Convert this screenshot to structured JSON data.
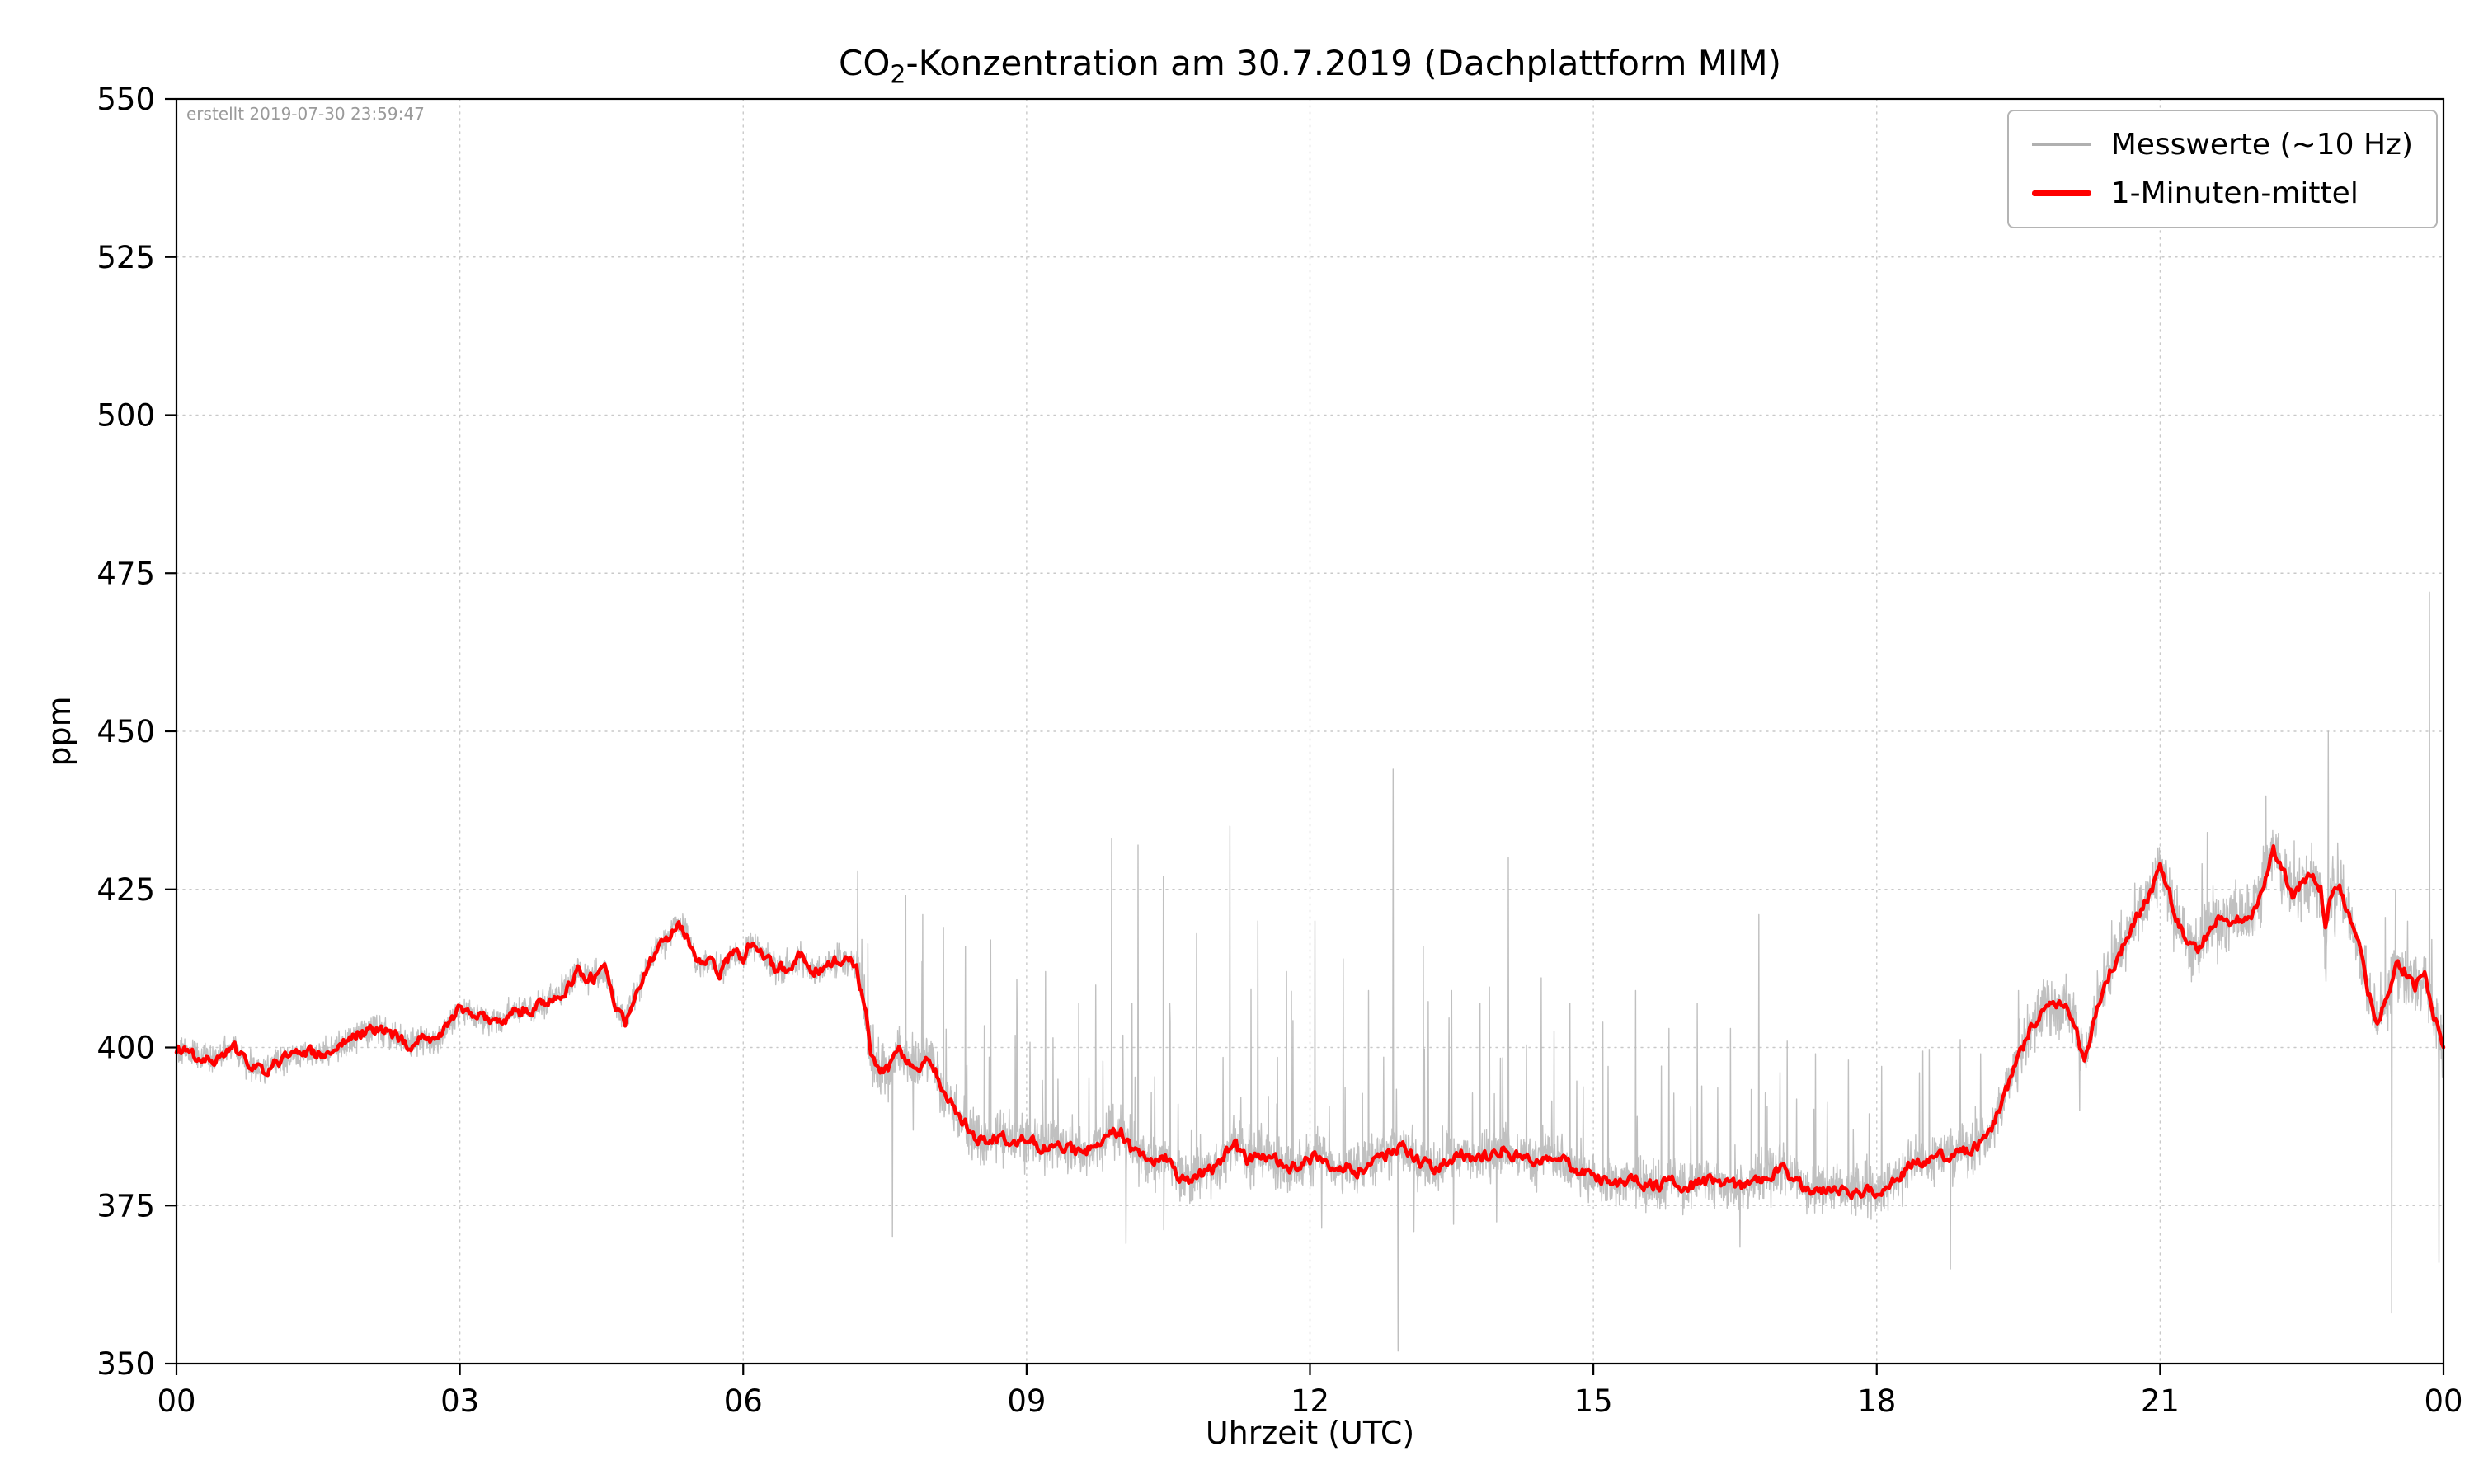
{
  "figure": {
    "title": {
      "pre": "CO",
      "sub": "2",
      "post": "-Konzentration am 30.7.2019 (Dachplattform MIM)"
    },
    "created_note": "erstellt 2019-07-30 23:59:47",
    "xlabel": "Uhrzeit (UTC)",
    "ylabel": "ppm",
    "background_color": "#ffffff"
  },
  "legend": {
    "position": "upper right",
    "items": [
      {
        "label": "Messwerte (~10 Hz)",
        "color": "#b0b0b0",
        "line_weight": "thin"
      },
      {
        "label": "1-Minuten-mittel",
        "color": "#ff0000",
        "line_weight": "thick"
      }
    ]
  },
  "chart_data": {
    "type": "line",
    "title": "CO2-Konzentration am 30.7.2019 (Dachplattform MIM)",
    "xlabel": "Uhrzeit (UTC)",
    "ylabel": "ppm",
    "xlim": [
      0,
      24
    ],
    "ylim": [
      350,
      550
    ],
    "grid": true,
    "grid_style": "dotted",
    "legend_position": "upper right",
    "xticks": {
      "values": [
        0,
        3,
        6,
        9,
        12,
        15,
        18,
        21,
        24
      ],
      "labels": [
        "00",
        "03",
        "06",
        "09",
        "12",
        "15",
        "18",
        "21",
        "00"
      ]
    },
    "yticks": {
      "values": [
        350,
        375,
        400,
        425,
        450,
        475,
        500,
        525,
        550
      ],
      "labels": [
        "350",
        "375",
        "400",
        "425",
        "450",
        "475",
        "500",
        "525",
        "550"
      ]
    },
    "series": [
      {
        "name": "Messwerte (~10 Hz)",
        "color": "#b9b9b9",
        "derived": "mean_plus_noise",
        "noise_model": {
          "seed": 42,
          "sample_step_hours": 0.004,
          "segments": [
            [
              0,
              7.2,
              2.2,
              0,
              0
            ],
            [
              7.2,
              8.5,
              4.5,
              0.03,
              18
            ],
            [
              8.5,
              14,
              3.8,
              0.05,
              26
            ],
            [
              14,
              19,
              3.8,
              0.04,
              20
            ],
            [
              19,
              21,
              4.5,
              0.012,
              10
            ],
            [
              21,
              24,
              5,
              0.02,
              12
            ]
          ],
          "spikes": [
            [
              7.58,
              370
            ],
            [
              7.72,
              424
            ],
            [
              7.9,
              421
            ],
            [
              8.12,
              419
            ],
            [
              8.35,
              416
            ],
            [
              8.62,
              417
            ],
            [
              8.9,
              404
            ],
            [
              9.2,
              412
            ],
            [
              9.55,
              407
            ],
            [
              9.9,
              433
            ],
            [
              10.05,
              369
            ],
            [
              10.18,
              432
            ],
            [
              10.45,
              427
            ],
            [
              10.52,
              404
            ],
            [
              10.8,
              418
            ],
            [
              11.15,
              435
            ],
            [
              11.45,
              420
            ],
            [
              11.75,
              412
            ],
            [
              12.05,
              420
            ],
            [
              12.35,
              414
            ],
            [
              12.62,
              409
            ],
            [
              12.88,
              444
            ],
            [
              12.93,
              352
            ],
            [
              13.2,
              416
            ],
            [
              13.5,
              409
            ],
            [
              13.8,
              407
            ],
            [
              14.1,
              430
            ],
            [
              14.45,
              411
            ],
            [
              14.75,
              407
            ],
            [
              15.1,
              404
            ],
            [
              15.45,
              409
            ],
            [
              15.8,
              403
            ],
            [
              16.1,
              407
            ],
            [
              16.45,
              403
            ],
            [
              16.75,
              421
            ],
            [
              17.05,
              401
            ],
            [
              17.35,
              399
            ],
            [
              17.7,
              398
            ],
            [
              18.05,
              397
            ],
            [
              18.45,
              396
            ],
            [
              18.78,
              365
            ],
            [
              19.1,
              399
            ],
            [
              19.5,
              409
            ],
            [
              20.15,
              390
            ],
            [
              21.5,
              434
            ],
            [
              22.78,
              450
            ],
            [
              23.45,
              358
            ],
            [
              23.85,
              472
            ],
            [
              23.95,
              366
            ]
          ]
        }
      },
      {
        "name": "1-Minuten-mittel",
        "color": "#ff0000",
        "points": [
          [
            0,
            400
          ],
          [
            0.2,
            399
          ],
          [
            0.4,
            398
          ],
          [
            0.6,
            400
          ],
          [
            0.75,
            397.5
          ],
          [
            0.9,
            396
          ],
          [
            1.1,
            398
          ],
          [
            1.3,
            399
          ],
          [
            1.5,
            399
          ],
          [
            1.7,
            400
          ],
          [
            1.9,
            402
          ],
          [
            2.1,
            403
          ],
          [
            2.3,
            402
          ],
          [
            2.45,
            400.5
          ],
          [
            2.6,
            401.5
          ],
          [
            2.75,
            400.5
          ],
          [
            2.9,
            404
          ],
          [
            3.0,
            406
          ],
          [
            3.1,
            405.5
          ],
          [
            3.3,
            404
          ],
          [
            3.5,
            405
          ],
          [
            3.7,
            406
          ],
          [
            3.9,
            407
          ],
          [
            4.1,
            409
          ],
          [
            4.25,
            412
          ],
          [
            4.4,
            411
          ],
          [
            4.55,
            412
          ],
          [
            4.65,
            407
          ],
          [
            4.75,
            404
          ],
          [
            4.85,
            408
          ],
          [
            5.0,
            413
          ],
          [
            5.1,
            416
          ],
          [
            5.2,
            417
          ],
          [
            5.3,
            420
          ],
          [
            5.4,
            418
          ],
          [
            5.5,
            413
          ],
          [
            5.6,
            414
          ],
          [
            5.75,
            412
          ],
          [
            5.9,
            415
          ],
          [
            6.0,
            414
          ],
          [
            6.1,
            417
          ],
          [
            6.2,
            415
          ],
          [
            6.35,
            412
          ],
          [
            6.5,
            413
          ],
          [
            6.6,
            414.5
          ],
          [
            6.75,
            412
          ],
          [
            6.9,
            413
          ],
          [
            7.0,
            414
          ],
          [
            7.1,
            413.5
          ],
          [
            7.2,
            413
          ],
          [
            7.3,
            405
          ],
          [
            7.35,
            398
          ],
          [
            7.45,
            396
          ],
          [
            7.55,
            397
          ],
          [
            7.65,
            399.5
          ],
          [
            7.75,
            398
          ],
          [
            7.85,
            397
          ],
          [
            7.95,
            398.5
          ],
          [
            8.05,
            396
          ],
          [
            8.15,
            392
          ],
          [
            8.25,
            390
          ],
          [
            8.35,
            388
          ],
          [
            8.45,
            386
          ],
          [
            8.55,
            385
          ],
          [
            8.7,
            386
          ],
          [
            8.85,
            385
          ],
          [
            9.0,
            385.5
          ],
          [
            9.15,
            384
          ],
          [
            9.3,
            385
          ],
          [
            9.45,
            384
          ],
          [
            9.6,
            383
          ],
          [
            9.75,
            385
          ],
          [
            9.9,
            386.5
          ],
          [
            10.0,
            387
          ],
          [
            10.1,
            384
          ],
          [
            10.2,
            383
          ],
          [
            10.35,
            382
          ],
          [
            10.5,
            382.5
          ],
          [
            10.6,
            380
          ],
          [
            10.7,
            379
          ],
          [
            10.85,
            380
          ],
          [
            11.0,
            381
          ],
          [
            11.1,
            383
          ],
          [
            11.2,
            384.5
          ],
          [
            11.35,
            382
          ],
          [
            11.5,
            383
          ],
          [
            11.65,
            382
          ],
          [
            11.8,
            381
          ],
          [
            11.95,
            382
          ],
          [
            12.1,
            383
          ],
          [
            12.25,
            381
          ],
          [
            12.4,
            381
          ],
          [
            12.55,
            380.5
          ],
          [
            12.7,
            382
          ],
          [
            12.85,
            383.5
          ],
          [
            13.0,
            384
          ],
          [
            13.15,
            382
          ],
          [
            13.3,
            381
          ],
          [
            13.45,
            382
          ],
          [
            13.6,
            383.5
          ],
          [
            13.75,
            382
          ],
          [
            13.9,
            383
          ],
          [
            14.05,
            384
          ],
          [
            14.2,
            383
          ],
          [
            14.35,
            382
          ],
          [
            14.5,
            383
          ],
          [
            14.65,
            382
          ],
          [
            14.8,
            381
          ],
          [
            14.95,
            380
          ],
          [
            15.1,
            379
          ],
          [
            15.25,
            378
          ],
          [
            15.4,
            379
          ],
          [
            15.55,
            378.5
          ],
          [
            15.7,
            378
          ],
          [
            15.85,
            379
          ],
          [
            16.0,
            378
          ],
          [
            16.15,
            378.5
          ],
          [
            16.3,
            379
          ],
          [
            16.45,
            378
          ],
          [
            16.6,
            378
          ],
          [
            16.75,
            379.5
          ],
          [
            16.9,
            380
          ],
          [
            17.0,
            381
          ],
          [
            17.1,
            379
          ],
          [
            17.2,
            378
          ],
          [
            17.35,
            377
          ],
          [
            17.5,
            378
          ],
          [
            17.65,
            377
          ],
          [
            17.8,
            377.5
          ],
          [
            17.95,
            377
          ],
          [
            18.1,
            378
          ],
          [
            18.25,
            380
          ],
          [
            18.4,
            382
          ],
          [
            18.55,
            382
          ],
          [
            18.7,
            383
          ],
          [
            18.85,
            383
          ],
          [
            19.0,
            384
          ],
          [
            19.1,
            385
          ],
          [
            19.2,
            387
          ],
          [
            19.3,
            390
          ],
          [
            19.4,
            394
          ],
          [
            19.5,
            398
          ],
          [
            19.6,
            402
          ],
          [
            19.7,
            405
          ],
          [
            19.8,
            407
          ],
          [
            19.9,
            406
          ],
          [
            20.0,
            407
          ],
          [
            20.1,
            403
          ],
          [
            20.2,
            398
          ],
          [
            20.3,
            404
          ],
          [
            20.4,
            410
          ],
          [
            20.5,
            413
          ],
          [
            20.6,
            416
          ],
          [
            20.7,
            419
          ],
          [
            20.8,
            422
          ],
          [
            20.9,
            425
          ],
          [
            21.0,
            428
          ],
          [
            21.1,
            424
          ],
          [
            21.2,
            419
          ],
          [
            21.3,
            417
          ],
          [
            21.4,
            415
          ],
          [
            21.5,
            418
          ],
          [
            21.6,
            420
          ],
          [
            21.7,
            419
          ],
          [
            21.8,
            421
          ],
          [
            21.9,
            420
          ],
          [
            22.0,
            422
          ],
          [
            22.1,
            426
          ],
          [
            22.2,
            431
          ],
          [
            22.3,
            428
          ],
          [
            22.4,
            424
          ],
          [
            22.5,
            426
          ],
          [
            22.6,
            427
          ],
          [
            22.7,
            425
          ],
          [
            22.75,
            418
          ],
          [
            22.8,
            424
          ],
          [
            22.9,
            426
          ],
          [
            23.0,
            421
          ],
          [
            23.1,
            416
          ],
          [
            23.2,
            409
          ],
          [
            23.3,
            404
          ],
          [
            23.4,
            408
          ],
          [
            23.5,
            413
          ],
          [
            23.6,
            412
          ],
          [
            23.7,
            410
          ],
          [
            23.8,
            412
          ],
          [
            23.9,
            405
          ],
          [
            24.0,
            400
          ]
        ]
      }
    ]
  }
}
